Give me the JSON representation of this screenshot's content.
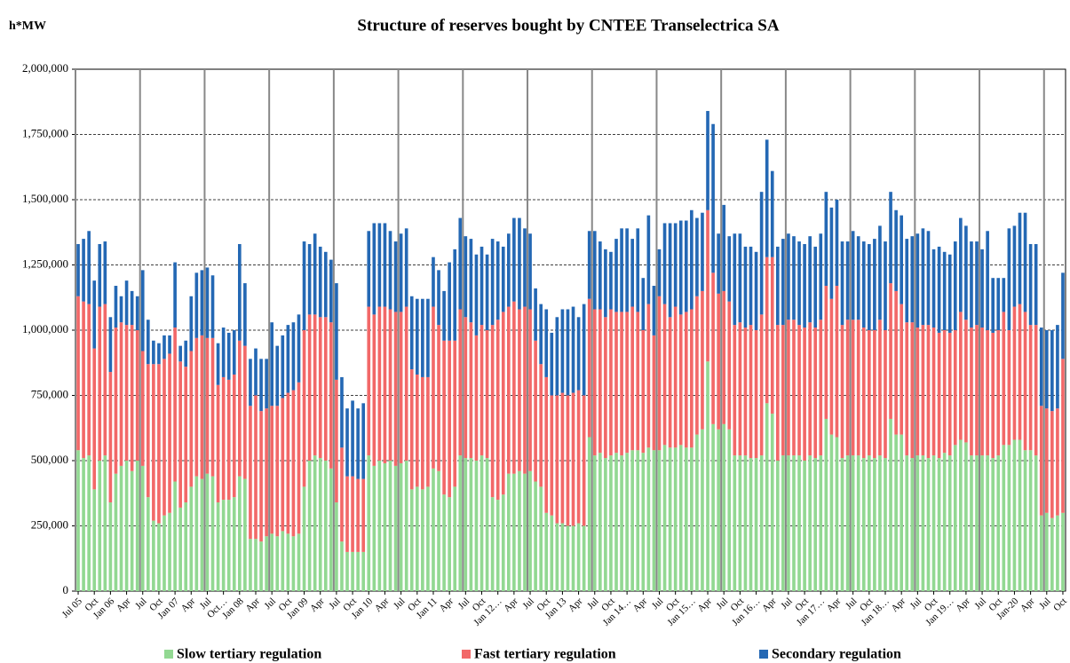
{
  "chart_data": {
    "type": "stacked-bar",
    "title": "Structure of reserves bought by CNTEE Transelectrica SA",
    "y_label": "h*MW",
    "categories": [
      "Jul 05",
      null,
      null,
      "Oct",
      null,
      null,
      "Jan 06",
      null,
      null,
      "Apr",
      null,
      null,
      "Jul",
      null,
      null,
      "Oct",
      null,
      null,
      "Jan 07",
      null,
      null,
      "Apr",
      null,
      null,
      "Jul",
      null,
      null,
      "Oct…",
      null,
      null,
      "Jan 08",
      null,
      null,
      "Apr",
      null,
      null,
      "Jul",
      null,
      null,
      "Oct",
      null,
      null,
      "Jan 09",
      null,
      null,
      "Apr",
      null,
      null,
      "Jul",
      null,
      null,
      "Oct",
      null,
      null,
      "Jan 10",
      null,
      null,
      "Apr",
      null,
      null,
      "Jul",
      null,
      null,
      "Oct",
      null,
      null,
      "Jan 11",
      null,
      null,
      "Apr",
      null,
      null,
      "Jul",
      null,
      null,
      "Oct",
      null,
      null,
      "Jan 12…",
      null,
      null,
      "Apr",
      null,
      null,
      "Jul",
      null,
      null,
      "Oct",
      null,
      null,
      "Jan 13",
      null,
      null,
      "Apr",
      null,
      null,
      "Jul",
      null,
      null,
      "Oct",
      null,
      null,
      "Jan 14…",
      null,
      null,
      "Apr",
      null,
      null,
      "Jul",
      null,
      null,
      "Oct",
      null,
      null,
      "Jan 15…",
      null,
      null,
      "Apr",
      null,
      null,
      "Jul",
      null,
      null,
      "Oct",
      null,
      null,
      "Jan 16…",
      null,
      null,
      "Apr",
      null,
      null,
      "Jul",
      null,
      null,
      "Oct",
      null,
      null,
      "Jan 17…",
      null,
      null,
      "Apr",
      null,
      null,
      "Jul",
      null,
      null,
      "Oct",
      null,
      null,
      "Jan 18…",
      null,
      null,
      "Apr",
      null,
      null,
      "Jul",
      null,
      null,
      "Oct",
      null,
      null,
      "Jan 19…",
      null,
      null,
      "Apr",
      null,
      null,
      "Jul",
      null,
      null,
      "Oct",
      null,
      null,
      "Jan-20",
      null,
      null,
      "Apr",
      null,
      null,
      "Jul",
      null,
      null,
      "Oct"
    ],
    "series": [
      {
        "name": "Slow tertiary regulation",
        "color": "#92d892",
        "values": [
          540000,
          510000,
          520000,
          390000,
          500000,
          520000,
          340000,
          450000,
          480000,
          500000,
          460000,
          500000,
          480000,
          360000,
          270000,
          260000,
          290000,
          300000,
          420000,
          320000,
          340000,
          400000,
          440000,
          430000,
          450000,
          440000,
          340000,
          350000,
          350000,
          360000,
          440000,
          430000,
          200000,
          200000,
          190000,
          210000,
          220000,
          210000,
          230000,
          220000,
          210000,
          220000,
          400000,
          500000,
          520000,
          510000,
          500000,
          470000,
          340000,
          190000,
          150000,
          150000,
          150000,
          150000,
          520000,
          480000,
          500000,
          490000,
          500000,
          480000,
          490000,
          500000,
          390000,
          400000,
          390000,
          400000,
          470000,
          460000,
          370000,
          360000,
          400000,
          520000,
          510000,
          510000,
          500000,
          520000,
          510000,
          360000,
          350000,
          370000,
          450000,
          450000,
          460000,
          450000,
          460000,
          420000,
          400000,
          300000,
          290000,
          260000,
          260000,
          250000,
          250000,
          260000,
          250000,
          590000,
          520000,
          530000,
          510000,
          520000,
          530000,
          520000,
          530000,
          540000,
          540000,
          530000,
          550000,
          540000,
          540000,
          560000,
          550000,
          550000,
          560000,
          550000,
          550000,
          600000,
          620000,
          880000,
          640000,
          620000,
          640000,
          620000,
          520000,
          520000,
          520000,
          510000,
          510000,
          520000,
          720000,
          680000,
          500000,
          520000,
          520000,
          520000,
          520000,
          500000,
          520000,
          510000,
          520000,
          660000,
          600000,
          590000,
          510000,
          520000,
          520000,
          520000,
          510000,
          520000,
          510000,
          520000,
          510000,
          660000,
          600000,
          600000,
          520000,
          510000,
          520000,
          520000,
          510000,
          520000,
          510000,
          530000,
          520000,
          560000,
          580000,
          570000,
          520000,
          520000,
          520000,
          520000,
          510000,
          520000,
          560000,
          560000,
          580000,
          580000,
          540000,
          540000,
          520000,
          290000,
          300000,
          280000,
          290000,
          300000
        ]
      },
      {
        "name": "Fast tertiary regulation",
        "color": "#f26868",
        "values": [
          590000,
          600000,
          580000,
          540000,
          590000,
          580000,
          500000,
          560000,
          550000,
          520000,
          560000,
          500000,
          440000,
          510000,
          600000,
          610000,
          600000,
          610000,
          590000,
          560000,
          520000,
          520000,
          530000,
          550000,
          520000,
          530000,
          450000,
          470000,
          460000,
          470000,
          520000,
          510000,
          510000,
          550000,
          500000,
          490000,
          490000,
          500000,
          510000,
          540000,
          560000,
          580000,
          600000,
          560000,
          540000,
          540000,
          550000,
          560000,
          470000,
          360000,
          290000,
          290000,
          280000,
          280000,
          570000,
          580000,
          590000,
          600000,
          580000,
          590000,
          580000,
          590000,
          460000,
          430000,
          430000,
          420000,
          620000,
          560000,
          590000,
          600000,
          560000,
          560000,
          540000,
          520000,
          480000,
          500000,
          490000,
          660000,
          690000,
          700000,
          640000,
          660000,
          620000,
          640000,
          620000,
          540000,
          470000,
          520000,
          460000,
          490000,
          500000,
          500000,
          510000,
          510000,
          500000,
          530000,
          560000,
          550000,
          540000,
          560000,
          540000,
          550000,
          540000,
          550000,
          530000,
          470000,
          550000,
          440000,
          590000,
          540000,
          500000,
          540000,
          500000,
          520000,
          530000,
          530000,
          530000,
          580000,
          580000,
          520000,
          510000,
          490000,
          500000,
          510000,
          490000,
          510000,
          490000,
          540000,
          560000,
          600000,
          520000,
          500000,
          520000,
          520000,
          500000,
          510000,
          510000,
          500000,
          520000,
          510000,
          520000,
          580000,
          510000,
          520000,
          520000,
          520000,
          500000,
          480000,
          490000,
          520000,
          490000,
          520000,
          550000,
          500000,
          510000,
          520000,
          490000,
          500000,
          510000,
          490000,
          480000,
          470000,
          470000,
          440000,
          490000,
          470000,
          490000,
          500000,
          490000,
          480000,
          480000,
          480000,
          510000,
          440000,
          510000,
          520000,
          530000,
          480000,
          500000,
          420000,
          400000,
          410000,
          410000,
          590000
        ]
      },
      {
        "name": "Secondary regulation",
        "color": "#2468b4",
        "values": [
          200000,
          240000,
          280000,
          260000,
          240000,
          240000,
          210000,
          160000,
          100000,
          170000,
          130000,
          130000,
          310000,
          170000,
          90000,
          80000,
          90000,
          70000,
          250000,
          60000,
          100000,
          210000,
          250000,
          250000,
          270000,
          240000,
          160000,
          190000,
          180000,
          170000,
          370000,
          240000,
          180000,
          180000,
          200000,
          190000,
          320000,
          230000,
          240000,
          260000,
          260000,
          260000,
          340000,
          270000,
          310000,
          270000,
          250000,
          240000,
          370000,
          270000,
          260000,
          290000,
          270000,
          290000,
          290000,
          350000,
          320000,
          320000,
          300000,
          270000,
          300000,
          300000,
          280000,
          290000,
          300000,
          300000,
          190000,
          210000,
          190000,
          300000,
          350000,
          350000,
          310000,
          320000,
          310000,
          300000,
          290000,
          330000,
          300000,
          250000,
          280000,
          320000,
          350000,
          300000,
          290000,
          200000,
          230000,
          260000,
          240000,
          300000,
          320000,
          330000,
          330000,
          280000,
          350000,
          260000,
          300000,
          260000,
          260000,
          220000,
          280000,
          320000,
          320000,
          260000,
          320000,
          200000,
          340000,
          190000,
          180000,
          310000,
          360000,
          320000,
          360000,
          350000,
          380000,
          300000,
          300000,
          380000,
          570000,
          230000,
          330000,
          250000,
          350000,
          340000,
          310000,
          300000,
          300000,
          470000,
          450000,
          330000,
          300000,
          330000,
          330000,
          320000,
          320000,
          320000,
          330000,
          310000,
          330000,
          360000,
          350000,
          330000,
          320000,
          300000,
          340000,
          320000,
          330000,
          330000,
          350000,
          360000,
          340000,
          350000,
          310000,
          340000,
          320000,
          330000,
          360000,
          370000,
          360000,
          300000,
          330000,
          300000,
          300000,
          340000,
          360000,
          360000,
          330000,
          320000,
          300000,
          380000,
          210000,
          200000,
          130000,
          390000,
          310000,
          350000,
          380000,
          310000,
          310000,
          300000,
          300000,
          310000,
          320000,
          330000
        ]
      }
    ],
    "ylim": [
      0,
      2000000
    ],
    "yticks": [
      0,
      {
        "value": 250000,
        "label": "250,000"
      },
      {
        "value": 500000,
        "label": "500,000"
      },
      {
        "value": 750000,
        "label": "750,000"
      },
      {
        "value": 1000000,
        "label": "1,000,000"
      },
      {
        "value": 1250000,
        "label": "1,250,000"
      },
      {
        "value": 1500000,
        "label": "1,500,000"
      },
      {
        "value": 1750000,
        "label": "1,750,000"
      },
      {
        "value": 2000000,
        "label": "2,000,000"
      }
    ],
    "grid": true,
    "legend": "bottom"
  }
}
